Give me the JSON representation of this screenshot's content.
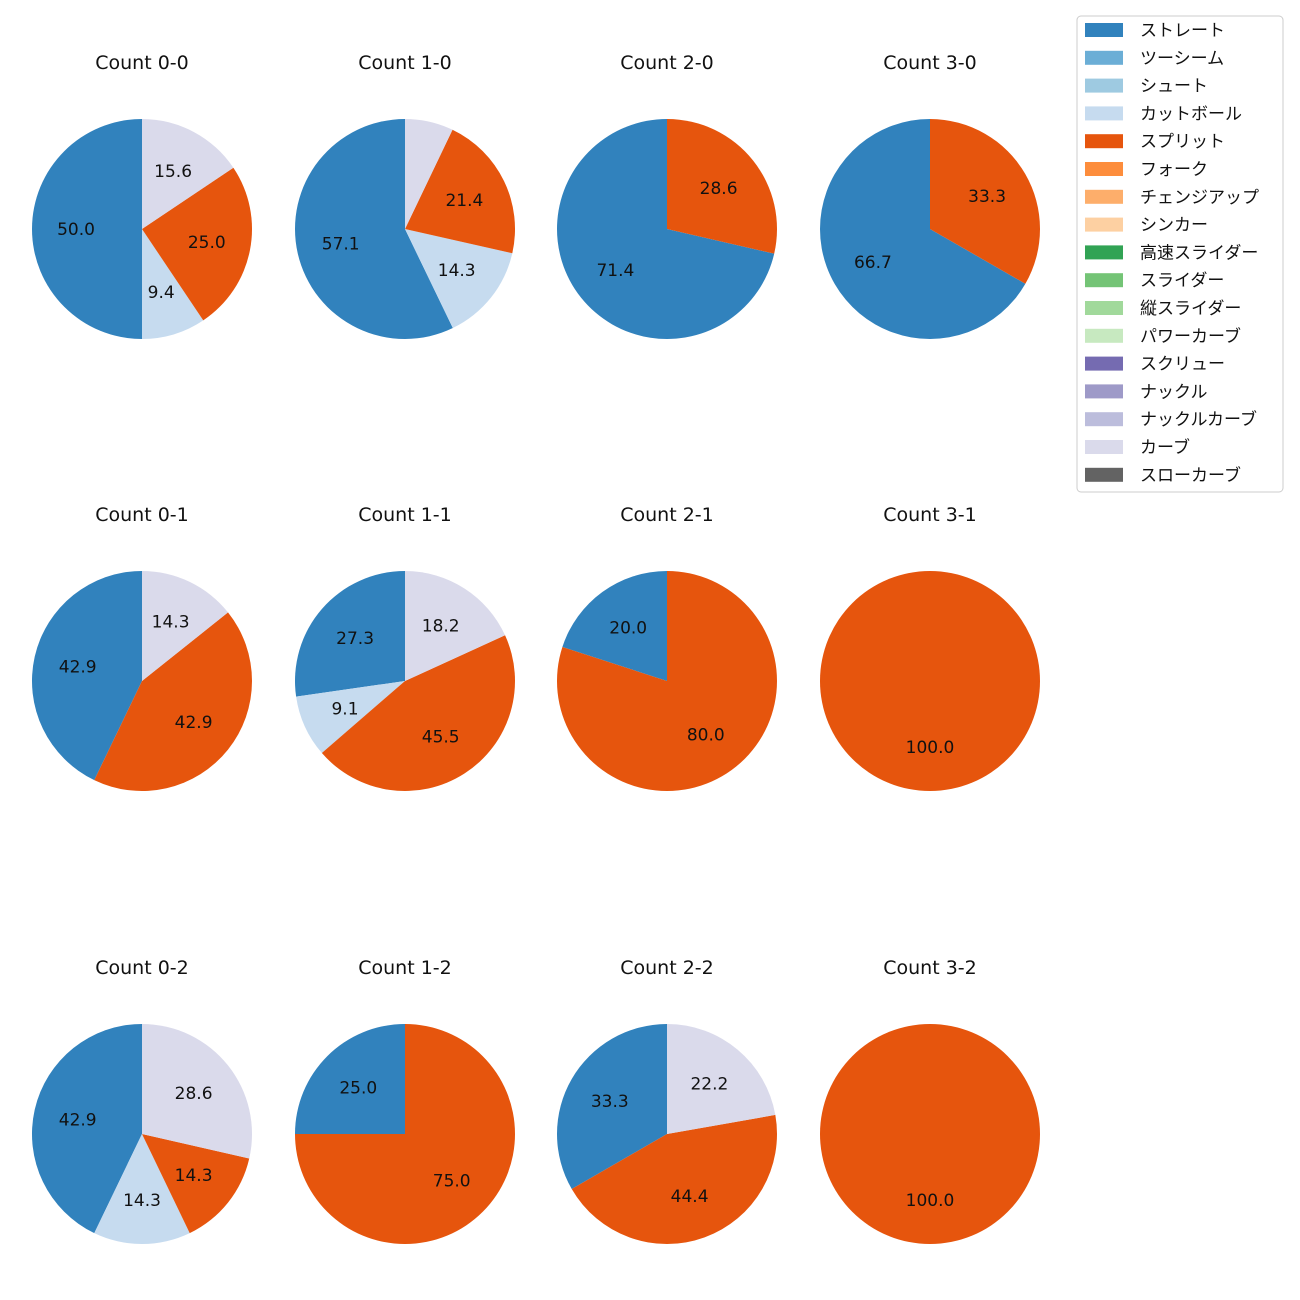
{
  "chart_data": {
    "type": "pie",
    "legend": {
      "placement": "top-right",
      "entries": [
        {
          "name": "ストレート",
          "color": "#3182bd"
        },
        {
          "name": "ツーシーム",
          "color": "#6baed6"
        },
        {
          "name": "シュート",
          "color": "#9ecae1"
        },
        {
          "name": "カットボール",
          "color": "#c6dbef"
        },
        {
          "name": "スプリット",
          "color": "#e6550d"
        },
        {
          "name": "フォーク",
          "color": "#fd8d3c"
        },
        {
          "name": "チェンジアップ",
          "color": "#fdae6b"
        },
        {
          "name": "シンカー",
          "color": "#fdd0a2"
        },
        {
          "name": "高速スライダー",
          "color": "#31a354"
        },
        {
          "name": "スライダー",
          "color": "#74c476"
        },
        {
          "name": "縦スライダー",
          "color": "#a1d99b"
        },
        {
          "name": "パワーカーブ",
          "color": "#c7e9c0"
        },
        {
          "name": "スクリュー",
          "color": "#756bb1"
        },
        {
          "name": "ナックル",
          "color": "#9e9ac8"
        },
        {
          "name": "ナックルカーブ",
          "color": "#bcbddc"
        },
        {
          "name": "カーブ",
          "color": "#dadaeb"
        },
        {
          "name": "スローカーブ",
          "color": "#636363"
        }
      ]
    },
    "pies": [
      {
        "title": "Count 0-0",
        "slices": [
          {
            "pitch": "ストレート",
            "value": 50.0,
            "label": "50.0"
          },
          {
            "pitch": "カットボール",
            "value": 9.4,
            "label": "9.4"
          },
          {
            "pitch": "スプリット",
            "value": 25.0,
            "label": "25.0"
          },
          {
            "pitch": "カーブ",
            "value": 15.6,
            "label": "15.6"
          }
        ]
      },
      {
        "title": "Count 1-0",
        "slices": [
          {
            "pitch": "ストレート",
            "value": 57.1,
            "label": "57.1"
          },
          {
            "pitch": "カットボール",
            "value": 14.3,
            "label": "14.3"
          },
          {
            "pitch": "スプリット",
            "value": 21.4,
            "label": "21.4"
          },
          {
            "pitch": "カーブ",
            "value": 7.1,
            "label": ""
          }
        ]
      },
      {
        "title": "Count 2-0",
        "slices": [
          {
            "pitch": "ストレート",
            "value": 71.4,
            "label": "71.4"
          },
          {
            "pitch": "スプリット",
            "value": 28.6,
            "label": "28.6"
          }
        ]
      },
      {
        "title": "Count 3-0",
        "slices": [
          {
            "pitch": "ストレート",
            "value": 66.7,
            "label": "66.7"
          },
          {
            "pitch": "スプリット",
            "value": 33.3,
            "label": "33.3"
          }
        ]
      },
      {
        "title": "Count 0-1",
        "slices": [
          {
            "pitch": "ストレート",
            "value": 42.9,
            "label": "42.9"
          },
          {
            "pitch": "スプリット",
            "value": 42.9,
            "label": "42.9"
          },
          {
            "pitch": "カーブ",
            "value": 14.3,
            "label": "14.3"
          }
        ]
      },
      {
        "title": "Count 1-1",
        "slices": [
          {
            "pitch": "ストレート",
            "value": 27.3,
            "label": "27.3"
          },
          {
            "pitch": "カットボール",
            "value": 9.1,
            "label": "9.1"
          },
          {
            "pitch": "スプリット",
            "value": 45.5,
            "label": "45.5"
          },
          {
            "pitch": "カーブ",
            "value": 18.2,
            "label": "18.2"
          }
        ]
      },
      {
        "title": "Count 2-1",
        "slices": [
          {
            "pitch": "ストレート",
            "value": 20.0,
            "label": "20.0"
          },
          {
            "pitch": "スプリット",
            "value": 80.0,
            "label": "80.0"
          }
        ]
      },
      {
        "title": "Count 3-1",
        "slices": [
          {
            "pitch": "スプリット",
            "value": 100.0,
            "label": "100.0"
          }
        ]
      },
      {
        "title": "Count 0-2",
        "slices": [
          {
            "pitch": "ストレート",
            "value": 42.9,
            "label": "42.9"
          },
          {
            "pitch": "カットボール",
            "value": 14.3,
            "label": "14.3"
          },
          {
            "pitch": "スプリット",
            "value": 14.3,
            "label": "14.3"
          },
          {
            "pitch": "カーブ",
            "value": 28.6,
            "label": "28.6"
          }
        ]
      },
      {
        "title": "Count 1-2",
        "slices": [
          {
            "pitch": "ストレート",
            "value": 25.0,
            "label": "25.0"
          },
          {
            "pitch": "スプリット",
            "value": 75.0,
            "label": "75.0"
          }
        ]
      },
      {
        "title": "Count 2-2",
        "slices": [
          {
            "pitch": "ストレート",
            "value": 33.3,
            "label": "33.3"
          },
          {
            "pitch": "スプリット",
            "value": 44.4,
            "label": "44.4"
          },
          {
            "pitch": "カーブ",
            "value": 22.2,
            "label": "22.2"
          }
        ]
      },
      {
        "title": "Count 3-2",
        "slices": [
          {
            "pitch": "スプリット",
            "value": 100.0,
            "label": "100.0"
          }
        ]
      }
    ]
  }
}
